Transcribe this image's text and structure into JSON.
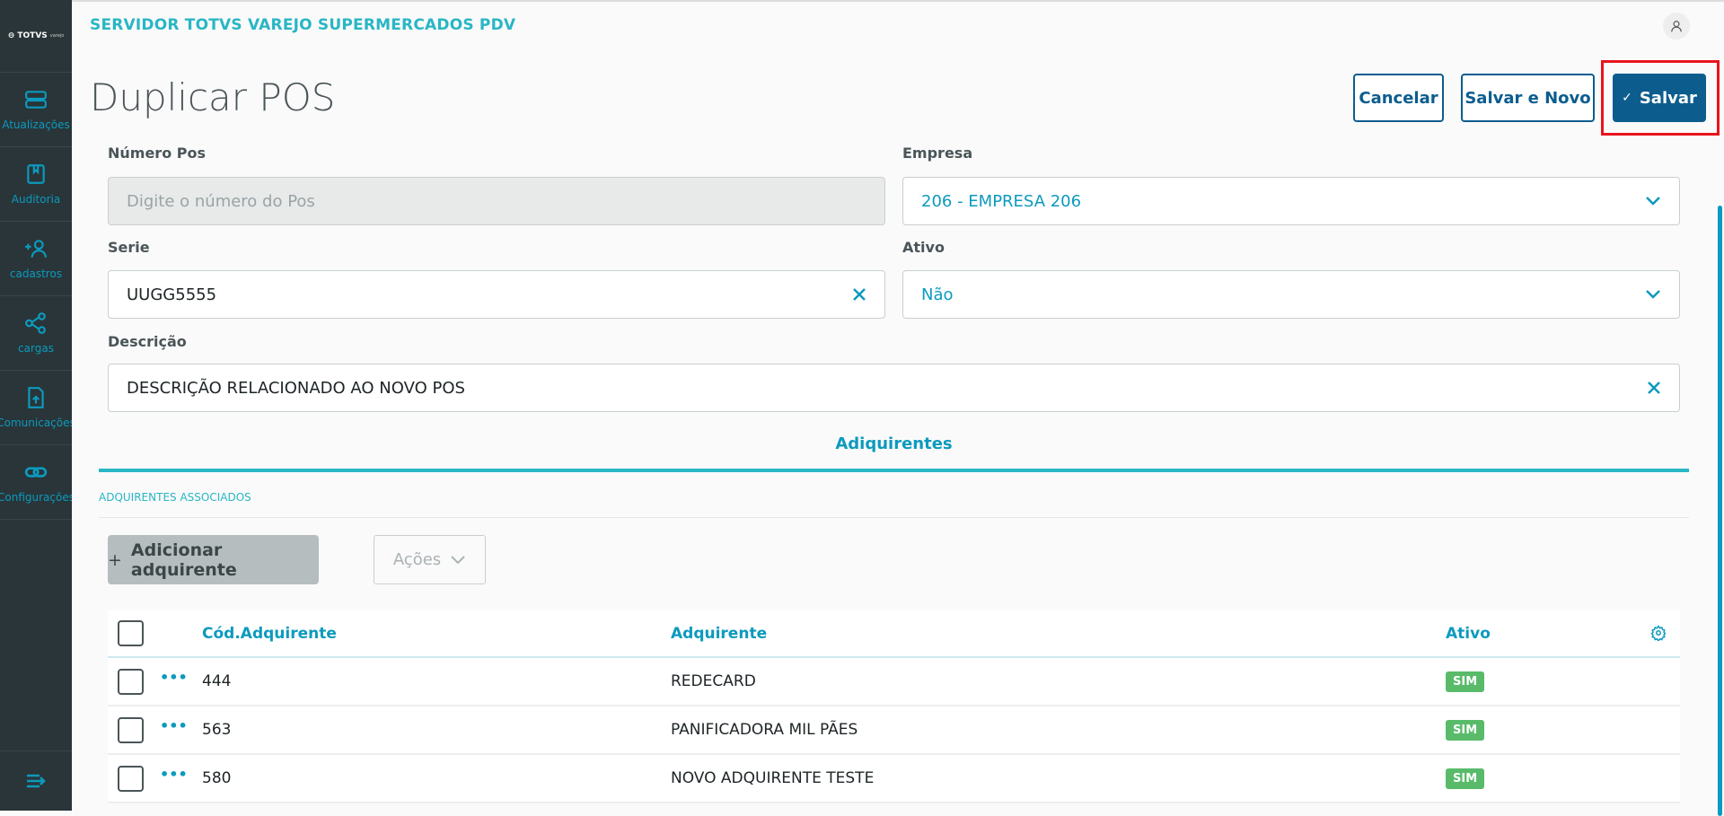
{
  "app": {
    "title": "SERVIDOR TOTVS VAREJO SUPERMERCADOS PDV",
    "logo": "TOTVS varejo"
  },
  "sidebar": {
    "items": [
      {
        "label": "Atualizações",
        "icon": "server-icon"
      },
      {
        "label": "Auditoria",
        "icon": "book-icon"
      },
      {
        "label": "cadastros",
        "icon": "add-user-icon"
      },
      {
        "label": "cargas",
        "icon": "share-icon"
      },
      {
        "label": "Comunicações",
        "icon": "file-upload-icon"
      },
      {
        "label": "Configurações",
        "icon": "link-icon"
      }
    ],
    "collapse_icon": "menu-collapse-icon"
  },
  "page": {
    "title": "Duplicar POS"
  },
  "actions": {
    "cancel": "Cancelar",
    "save_new": "Salvar e Novo",
    "save": "Salvar"
  },
  "form": {
    "numero_label": "Número Pos",
    "numero_placeholder": "Digite o número do Pos",
    "empresa_label": "Empresa",
    "empresa_value": "206 - EMPRESA 206",
    "serie_label": "Serie",
    "serie_value": "UUGG5555",
    "ativo_label": "Ativo",
    "ativo_value": "Não",
    "descricao_label": "Descrição",
    "descricao_value": "DESCRIÇÃO RELACIONADO AO NOVO POS"
  },
  "tabs": {
    "active": "Adiquirentes"
  },
  "section": {
    "title": "ADQUIRENTES ASSOCIADOS",
    "add_button": "Adicionar adquirente",
    "actions_button": "Ações"
  },
  "table": {
    "headers": [
      "Cód.Adquirente",
      "Adquirente",
      "Ativo"
    ],
    "rows": [
      {
        "cod": "444",
        "nome": "REDECARD",
        "ativo": "SIM"
      },
      {
        "cod": "563",
        "nome": "PANIFICADORA MIL PÃES",
        "ativo": "SIM"
      },
      {
        "cod": "580",
        "nome": "NOVO ADQUIRENTE TESTE",
        "ativo": "SIM"
      }
    ]
  },
  "colors": {
    "primary": "#0c5d8e",
    "accent": "#29b6c5",
    "sidebar": "#293538",
    "success": "#59bb6a",
    "highlight": "#e8141c"
  }
}
